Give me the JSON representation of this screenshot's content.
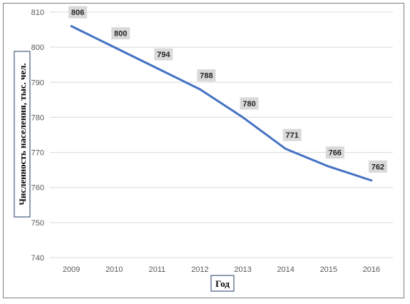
{
  "chart_data": {
    "type": "line",
    "x": [
      "2009",
      "2010",
      "2011",
      "2012",
      "2013",
      "2014",
      "2015",
      "2016"
    ],
    "series": [
      {
        "values": [
          806,
          800,
          794,
          788,
          780,
          771,
          766,
          762
        ]
      }
    ],
    "data_labels": [
      "806",
      "800",
      "794",
      "788",
      "780",
      "771",
      "766",
      "762"
    ],
    "xlabel": "Год",
    "ylabel": "Численность населения, тыс. чел.",
    "ylim": [
      740,
      810
    ],
    "yticks": [
      740,
      750,
      760,
      770,
      780,
      790,
      800,
      810
    ],
    "grid": true,
    "line_color": "#4472c4",
    "label_bg_color": "#d9d9d9",
    "grid_color": "#d9d9d9"
  }
}
